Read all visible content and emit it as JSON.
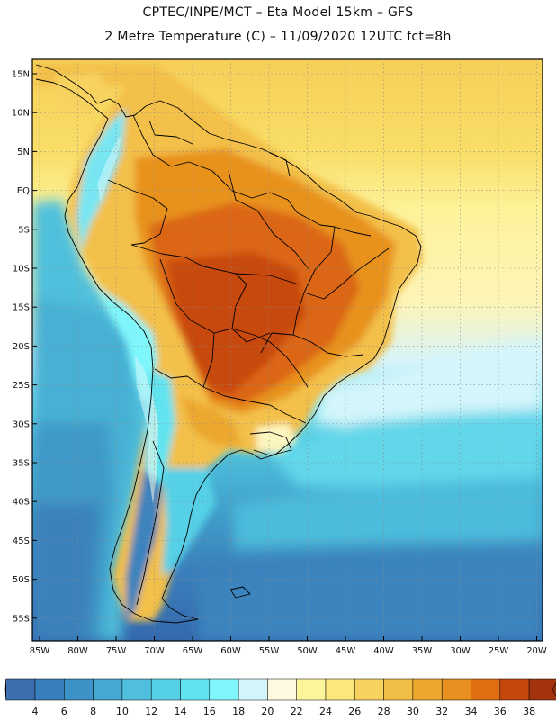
{
  "header": {
    "line1": "CPTEC/INPE/MCT –  Eta Model 15km – GFS",
    "line2": "2 Metre Temperature (C) – 11/09/2020 12UTC fct=8h"
  },
  "map": {
    "lat_labels": [
      "15N",
      "10N",
      "5N",
      "EQ",
      "5S",
      "10S",
      "15S",
      "20S",
      "25S",
      "30S",
      "35S",
      "40S",
      "45S",
      "50S",
      "55S"
    ],
    "lon_labels": [
      "85W",
      "80W",
      "75W",
      "70W",
      "65W",
      "60W",
      "55W",
      "50W",
      "45W",
      "40W",
      "35W",
      "30W",
      "25W",
      "20W"
    ]
  },
  "colorbar": {
    "ticks": [
      "4",
      "6",
      "8",
      "10",
      "12",
      "14",
      "16",
      "18",
      "20",
      "22",
      "24",
      "26",
      "28",
      "30",
      "32",
      "34",
      "36",
      "38"
    ],
    "colors": [
      "#3d6fae",
      "#3a7fbd",
      "#3d93c8",
      "#45a8d2",
      "#4fbfdd",
      "#55d0e6",
      "#62e4f0",
      "#7ef6fb",
      "#d2f6fc",
      "#fdf9e0",
      "#fdf59a",
      "#fde67c",
      "#f8d25e",
      "#f0be44",
      "#eba72e",
      "#e8901f",
      "#df6d11",
      "#c6470c",
      "#a3330d"
    ],
    "under_color": "#3263a8",
    "over_color": "#9b2f0c"
  }
}
